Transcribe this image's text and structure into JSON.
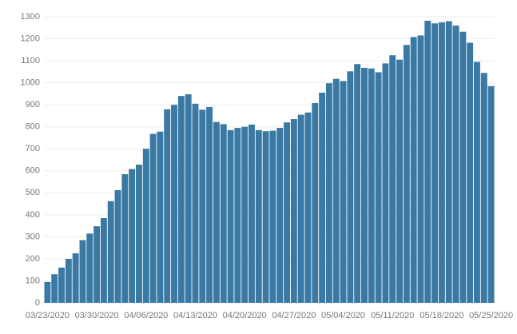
{
  "chart_data": {
    "type": "bar",
    "categories": [
      "03/23/2020",
      null,
      null,
      null,
      null,
      null,
      null,
      "03/30/2020",
      null,
      null,
      null,
      null,
      null,
      null,
      "04/06/2020",
      null,
      null,
      null,
      null,
      null,
      null,
      "04/13/2020",
      null,
      null,
      null,
      null,
      null,
      null,
      "04/20/2020",
      null,
      null,
      null,
      null,
      null,
      null,
      "04/27/2020",
      null,
      null,
      null,
      null,
      null,
      null,
      "05/04/2020",
      null,
      null,
      null,
      null,
      null,
      null,
      "05/11/2020",
      null,
      null,
      null,
      null,
      null,
      null,
      "05/18/2020",
      null,
      null,
      null,
      null,
      null,
      null,
      "05/25/2020"
    ],
    "values": [
      95,
      130,
      160,
      200,
      225,
      285,
      315,
      348,
      385,
      462,
      512,
      585,
      608,
      628,
      700,
      768,
      778,
      880,
      900,
      940,
      948,
      905,
      878,
      890,
      822,
      812,
      785,
      795,
      800,
      810,
      785,
      780,
      782,
      795,
      820,
      835,
      855,
      865,
      908,
      955,
      998,
      1018,
      1008,
      1052,
      1085,
      1068,
      1065,
      1048,
      1088,
      1125,
      1105,
      1172,
      1208,
      1215,
      1282,
      1270,
      1275,
      1280,
      1260,
      1232,
      1182,
      1095,
      1045,
      985
    ],
    "color": "#3a79a3",
    "ylim": [
      0,
      1300
    ],
    "yticks": [
      0,
      100,
      200,
      300,
      400,
      500,
      600,
      700,
      800,
      900,
      1000,
      1100,
      1200,
      1300
    ],
    "grid": true
  }
}
